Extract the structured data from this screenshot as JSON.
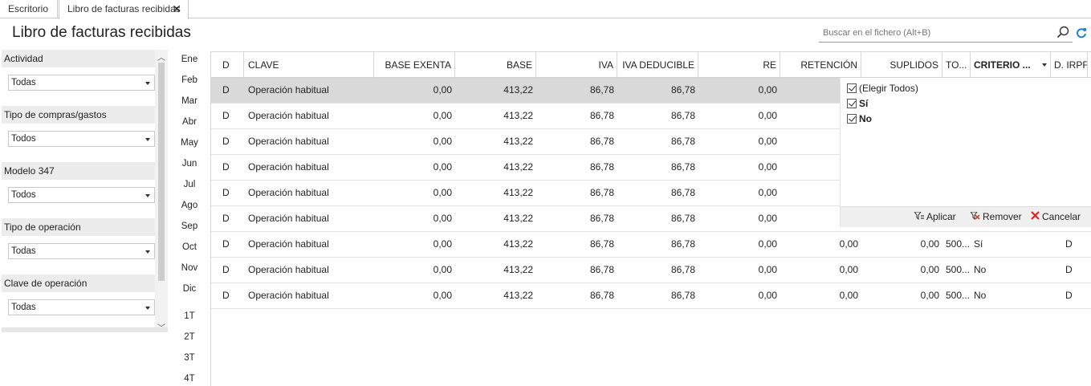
{
  "tabs": [
    {
      "label": "Escritorio"
    },
    {
      "label": "Libro de facturas recibidas",
      "close": "✕"
    }
  ],
  "page_title": "Libro de facturas recibidas",
  "search": {
    "placeholder": "Buscar en el fichero (Alt+B)"
  },
  "filters": [
    {
      "label": "Actividad",
      "value": "Todas"
    },
    {
      "label": "Tipo de compras/gastos",
      "value": "Todos"
    },
    {
      "label": "Modelo 347",
      "value": "Todos"
    },
    {
      "label": "Tipo de operación",
      "value": "Todas"
    },
    {
      "label": "Clave de operación",
      "value": "Todas"
    }
  ],
  "periods": [
    "Ene",
    "Feb",
    "Mar",
    "Abr",
    "May",
    "Jun",
    "Jul",
    "Ago",
    "Sep",
    "Oct",
    "Nov",
    "Dic",
    "1T",
    "2T",
    "3T",
    "4T"
  ],
  "columns": [
    "D",
    "CLAVE",
    "BASE EXENTA",
    "BASE",
    "IVA",
    "IVA DEDUCIBLE",
    "RE",
    "RETENCIÓN",
    "SUPLIDOS",
    "TO...",
    "CRITERIO ...",
    "D. IRPF"
  ],
  "rows": [
    {
      "d": "D",
      "clave": "Operación habitual",
      "base_exenta": "0,00",
      "base": "413,22",
      "iva": "86,78",
      "iva_deducible": "86,78",
      "re": "0,00",
      "retencion": "",
      "suplidos": "",
      "total": "",
      "criterio": "",
      "irpf": ""
    },
    {
      "d": "D",
      "clave": "Operación habitual",
      "base_exenta": "0,00",
      "base": "413,22",
      "iva": "86,78",
      "iva_deducible": "86,78",
      "re": "0,00",
      "retencion": "",
      "suplidos": "",
      "total": "",
      "criterio": "",
      "irpf": ""
    },
    {
      "d": "D",
      "clave": "Operación habitual",
      "base_exenta": "0,00",
      "base": "413,22",
      "iva": "86,78",
      "iva_deducible": "86,78",
      "re": "0,00",
      "retencion": "",
      "suplidos": "",
      "total": "",
      "criterio": "",
      "irpf": ""
    },
    {
      "d": "D",
      "clave": "Operación habitual",
      "base_exenta": "0,00",
      "base": "413,22",
      "iva": "86,78",
      "iva_deducible": "86,78",
      "re": "0,00",
      "retencion": "",
      "suplidos": "",
      "total": "",
      "criterio": "",
      "irpf": ""
    },
    {
      "d": "D",
      "clave": "Operación habitual",
      "base_exenta": "0,00",
      "base": "413,22",
      "iva": "86,78",
      "iva_deducible": "86,78",
      "re": "0,00",
      "retencion": "",
      "suplidos": "",
      "total": "",
      "criterio": "",
      "irpf": ""
    },
    {
      "d": "D",
      "clave": "Operación habitual",
      "base_exenta": "0,00",
      "base": "413,22",
      "iva": "86,78",
      "iva_deducible": "86,78",
      "re": "0,00",
      "retencion": "",
      "suplidos": "",
      "total": "",
      "criterio": "",
      "irpf": ""
    },
    {
      "d": "D",
      "clave": "Operación habitual",
      "base_exenta": "0,00",
      "base": "413,22",
      "iva": "86,78",
      "iva_deducible": "86,78",
      "re": "0,00",
      "retencion": "0,00",
      "suplidos": "0,00",
      "total": "500...",
      "criterio": "Sí",
      "irpf": "D"
    },
    {
      "d": "D",
      "clave": "Operación habitual",
      "base_exenta": "0,00",
      "base": "413,22",
      "iva": "86,78",
      "iva_deducible": "86,78",
      "re": "0,00",
      "retencion": "0,00",
      "suplidos": "0,00",
      "total": "500...",
      "criterio": "No",
      "irpf": "D"
    },
    {
      "d": "D",
      "clave": "Operación habitual",
      "base_exenta": "0,00",
      "base": "413,22",
      "iva": "86,78",
      "iva_deducible": "86,78",
      "re": "0,00",
      "retencion": "0,00",
      "suplidos": "0,00",
      "total": "500...",
      "criterio": "No",
      "irpf": "D"
    }
  ],
  "filter_popup": {
    "options": [
      {
        "label": "(Elegir Todos)",
        "checked": true
      },
      {
        "label": "Sí",
        "checked": true
      },
      {
        "label": "No",
        "checked": true
      }
    ],
    "apply": "Aplicar",
    "remove": "Remover",
    "cancel": "Cancelar"
  },
  "colors": {
    "selected_row": "#d9d9d9",
    "refresh_icon": "#1f7fd6",
    "cancel_icon": "#e02020",
    "remove_icon": "#c0392b"
  }
}
